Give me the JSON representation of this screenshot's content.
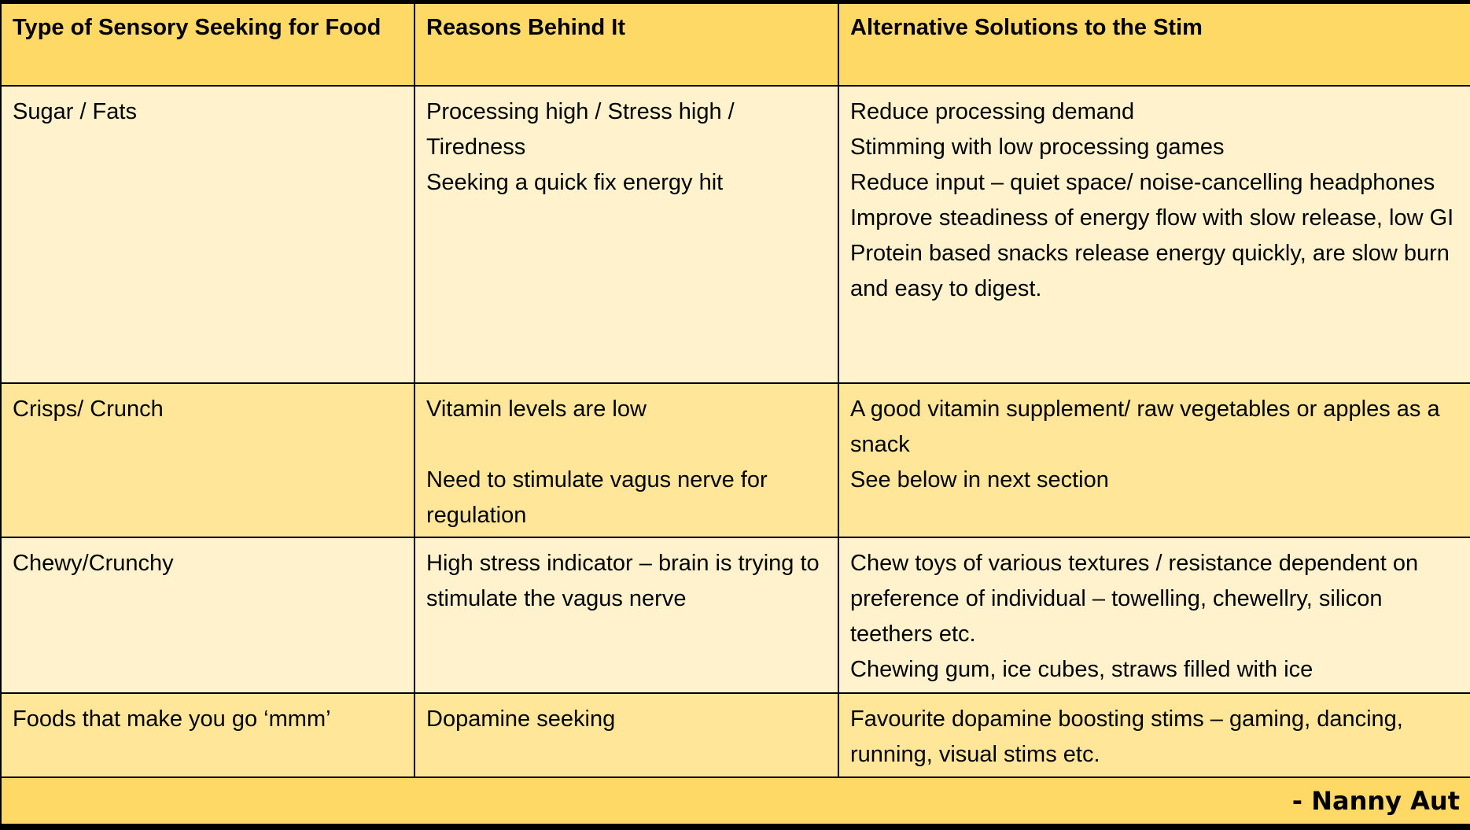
{
  "table": {
    "headers": [
      "Type of Sensory Seeking for Food",
      "Reasons Behind It",
      "Alternative Solutions to the Stim"
    ],
    "rows": [
      {
        "type": "Sugar / Fats",
        "reasons": [
          "Processing high / Stress high / Tiredness",
          "Seeking a quick fix energy hit"
        ],
        "solutions": [
          "Reduce processing demand",
          "Stimming with low processing games",
          "Reduce input – quiet space/ noise-cancelling headphones",
          "Improve steadiness of energy flow with slow release, low GI",
          "Protein based snacks release energy quickly, are slow burn and easy to digest."
        ]
      },
      {
        "type": "Crisps/ Crunch",
        "reasons": [
          "Vitamin levels are low",
          "",
          "Need to stimulate vagus nerve for regulation"
        ],
        "solutions": [
          "A good vitamin supplement/ raw vegetables or apples as a snack",
          "See below in next section"
        ]
      },
      {
        "type": "Chewy/Crunchy",
        "reasons": [
          "High stress indicator – brain is trying to stimulate the vagus nerve"
        ],
        "solutions": [
          "Chew toys of various textures / resistance dependent on preference of individual – towelling, chewellry, silicon teethers etc.",
          "Chewing gum, ice cubes, straws filled with ice"
        ]
      },
      {
        "type": "Foods that make you go ‘mmm’",
        "reasons": [
          "Dopamine seeking"
        ],
        "solutions": [
          "Favourite dopamine boosting stims – gaming, dancing, running, visual stims etc."
        ]
      }
    ],
    "footer": "- Nanny Aut"
  },
  "colors": {
    "header": "#FFD966",
    "row_light": "#FFF2CC",
    "row_mid": "#FFE699",
    "border": "#000000"
  }
}
